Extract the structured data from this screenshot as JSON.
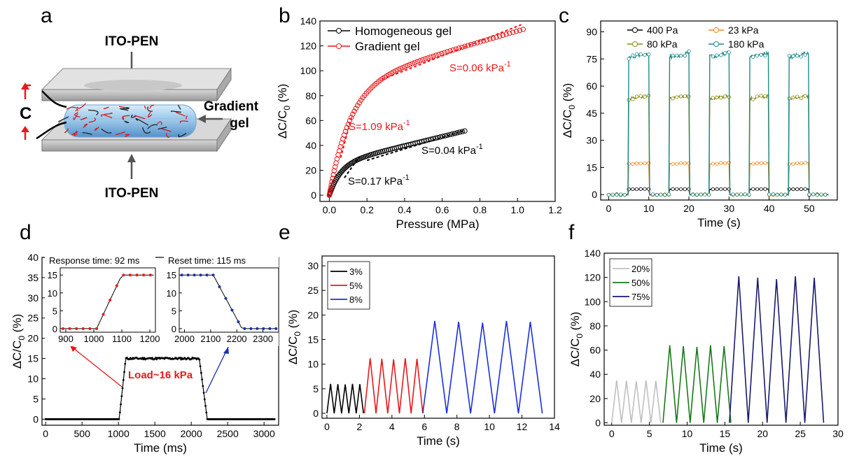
{
  "panels": {
    "a": {
      "letter": "a",
      "top_label": "ITO-PEN",
      "bottom_label": "ITO-PEN",
      "side_label_1": "Gradient",
      "side_label_2": "gel",
      "c_label": "C"
    },
    "b": {
      "letter": "b"
    },
    "c": {
      "letter": "c"
    },
    "d": {
      "letter": "d"
    },
    "e": {
      "letter": "e"
    },
    "f": {
      "letter": "f"
    }
  },
  "chart_data": [
    {
      "id": "b",
      "type": "scatter",
      "xlabel": "Pressure (MPa)",
      "ylabel": "ΔC/C0 (%)",
      "xlim": [
        -0.05,
        1.2
      ],
      "ylim": [
        -5,
        140
      ],
      "xticks": [
        "0.0",
        "0.2",
        "0.4",
        "0.6",
        "0.8",
        "1.0",
        "1.2"
      ],
      "yticks": [
        "0",
        "20",
        "40",
        "60",
        "80",
        "100",
        "120",
        "140"
      ],
      "legend_position": "top-left",
      "series": [
        {
          "name": "Homogeneous gel",
          "color": "#000000",
          "marker": "open-circle",
          "x_max": 0.72,
          "y_at_max": 51,
          "knee_x": 0.15,
          "knee_y": 25
        },
        {
          "name": "Gradient gel",
          "color": "#e8191b",
          "marker": "open-circle",
          "x_max": 1.03,
          "y_at_max": 133,
          "knee_x": 0.1,
          "knee_y": 55
        }
      ],
      "annotations": [
        {
          "text": "S=0.06 kPa",
          "sup": "-1",
          "color": "#e8191b"
        },
        {
          "text": "S=1.09 kPa",
          "sup": "-1",
          "color": "#e8191b"
        },
        {
          "text": "S=0.04 kPa",
          "sup": "-1",
          "color": "#000000"
        },
        {
          "text": "S=0.17 kPa",
          "sup": "-1",
          "color": "#000000"
        }
      ]
    },
    {
      "id": "c",
      "type": "line",
      "xlabel": "Time (s)",
      "ylabel": "ΔC/C0 (%)",
      "xlim": [
        -2,
        57
      ],
      "ylim": [
        -3,
        96
      ],
      "xticks": [
        "0",
        "10",
        "20",
        "30",
        "40",
        "50"
      ],
      "yticks": [
        "0",
        "15",
        "30",
        "45",
        "60",
        "75",
        "90"
      ],
      "legend_position": "top",
      "pulses_on": [
        5,
        15,
        25,
        35,
        45
      ],
      "pulse_width": 5,
      "series": [
        {
          "name": "400 Pa",
          "color": "#000000",
          "level": 3
        },
        {
          "name": "23 kPa",
          "color": "#f28a1a",
          "level": 17
        },
        {
          "name": "80 kPa",
          "color": "#8a8a12",
          "level": 53
        },
        {
          "name": "180 kPa",
          "color": "#1f8c8c",
          "level": 76
        }
      ]
    },
    {
      "id": "d",
      "type": "line",
      "xlabel": "Time (ms)",
      "ylabel": "ΔC/C0 (%)",
      "xlim": [
        -50,
        3200
      ],
      "ylim": [
        -1.5,
        40
      ],
      "xticks": [
        "0",
        "500",
        "1000",
        "1500",
        "2000",
        "2500",
        "3000"
      ],
      "yticks": [
        "0",
        "5",
        "10",
        "15",
        "20",
        "25",
        "30",
        "35",
        "40"
      ],
      "rise_start": 1010,
      "rise_end": 1100,
      "fall_start": 2110,
      "fall_end": 2220,
      "plateau": 15,
      "annotation": "Load~16 kPa",
      "insets": [
        {
          "title": "Response time: 92 ms",
          "xticks": [
            "900",
            "1000",
            "1100",
            "1200"
          ],
          "yticks": [
            "0",
            "5",
            "10",
            "15"
          ],
          "xlim": [
            880,
            1220
          ],
          "ylim": [
            -1,
            17
          ],
          "line_color": "#000000",
          "marker_color": "#e8191b"
        },
        {
          "title": "Reset time: 115 ms",
          "xticks": [
            "2000",
            "2100",
            "2200",
            "2300"
          ],
          "yticks": [
            "0",
            "5",
            "10",
            "15"
          ],
          "xlim": [
            1980,
            2360
          ],
          "ylim": [
            -1,
            17
          ],
          "line_color": "#000000",
          "marker_color": "#1a2fb0"
        }
      ]
    },
    {
      "id": "e",
      "type": "line",
      "xlabel": "Time (s)",
      "ylabel": "ΔC/C0 (%)",
      "xlim": [
        -0.3,
        14
      ],
      "ylim": [
        -1,
        32
      ],
      "xticks": [
        "0",
        "2",
        "4",
        "6",
        "8",
        "10",
        "12",
        "14"
      ],
      "yticks": [
        "0",
        "5",
        "10",
        "15",
        "20",
        "25",
        "30"
      ],
      "legend_position": "top-left",
      "series": [
        {
          "name": "3%",
          "color": "#000000",
          "t_start": 0.0,
          "period": 0.45,
          "cycles": 5,
          "amp": 6
        },
        {
          "name": "5%",
          "color": "#e8191b",
          "t_start": 2.3,
          "period": 0.72,
          "cycles": 5,
          "amp": 11.2
        },
        {
          "name": "8%",
          "color": "#1a2fe0",
          "t_start": 5.9,
          "period": 1.47,
          "cycles": 5,
          "amp": 18.8
        }
      ]
    },
    {
      "id": "f",
      "type": "line",
      "xlabel": "Time (s)",
      "ylabel": "ΔC/C0 (%)",
      "xlim": [
        -1,
        30
      ],
      "ylim": [
        -2,
        140
      ],
      "xticks": [
        "0",
        "5",
        "10",
        "15",
        "20",
        "25",
        "30"
      ],
      "yticks": [
        "0",
        "20",
        "40",
        "60",
        "80",
        "100",
        "120",
        "140"
      ],
      "legend_position": "top-left",
      "series": [
        {
          "name": "20%",
          "color": "#c0c0c0",
          "t_start": 0.0,
          "period": 1.3,
          "cycles": 5,
          "amp": 35
        },
        {
          "name": "50%",
          "color": "#1a7a1a",
          "t_start": 6.8,
          "period": 1.8,
          "cycles": 5,
          "amp": 64
        },
        {
          "name": "75%",
          "color": "#1a1a6e",
          "t_start": 15.6,
          "period": 2.5,
          "cycles": 5,
          "amp": 121
        }
      ]
    }
  ]
}
